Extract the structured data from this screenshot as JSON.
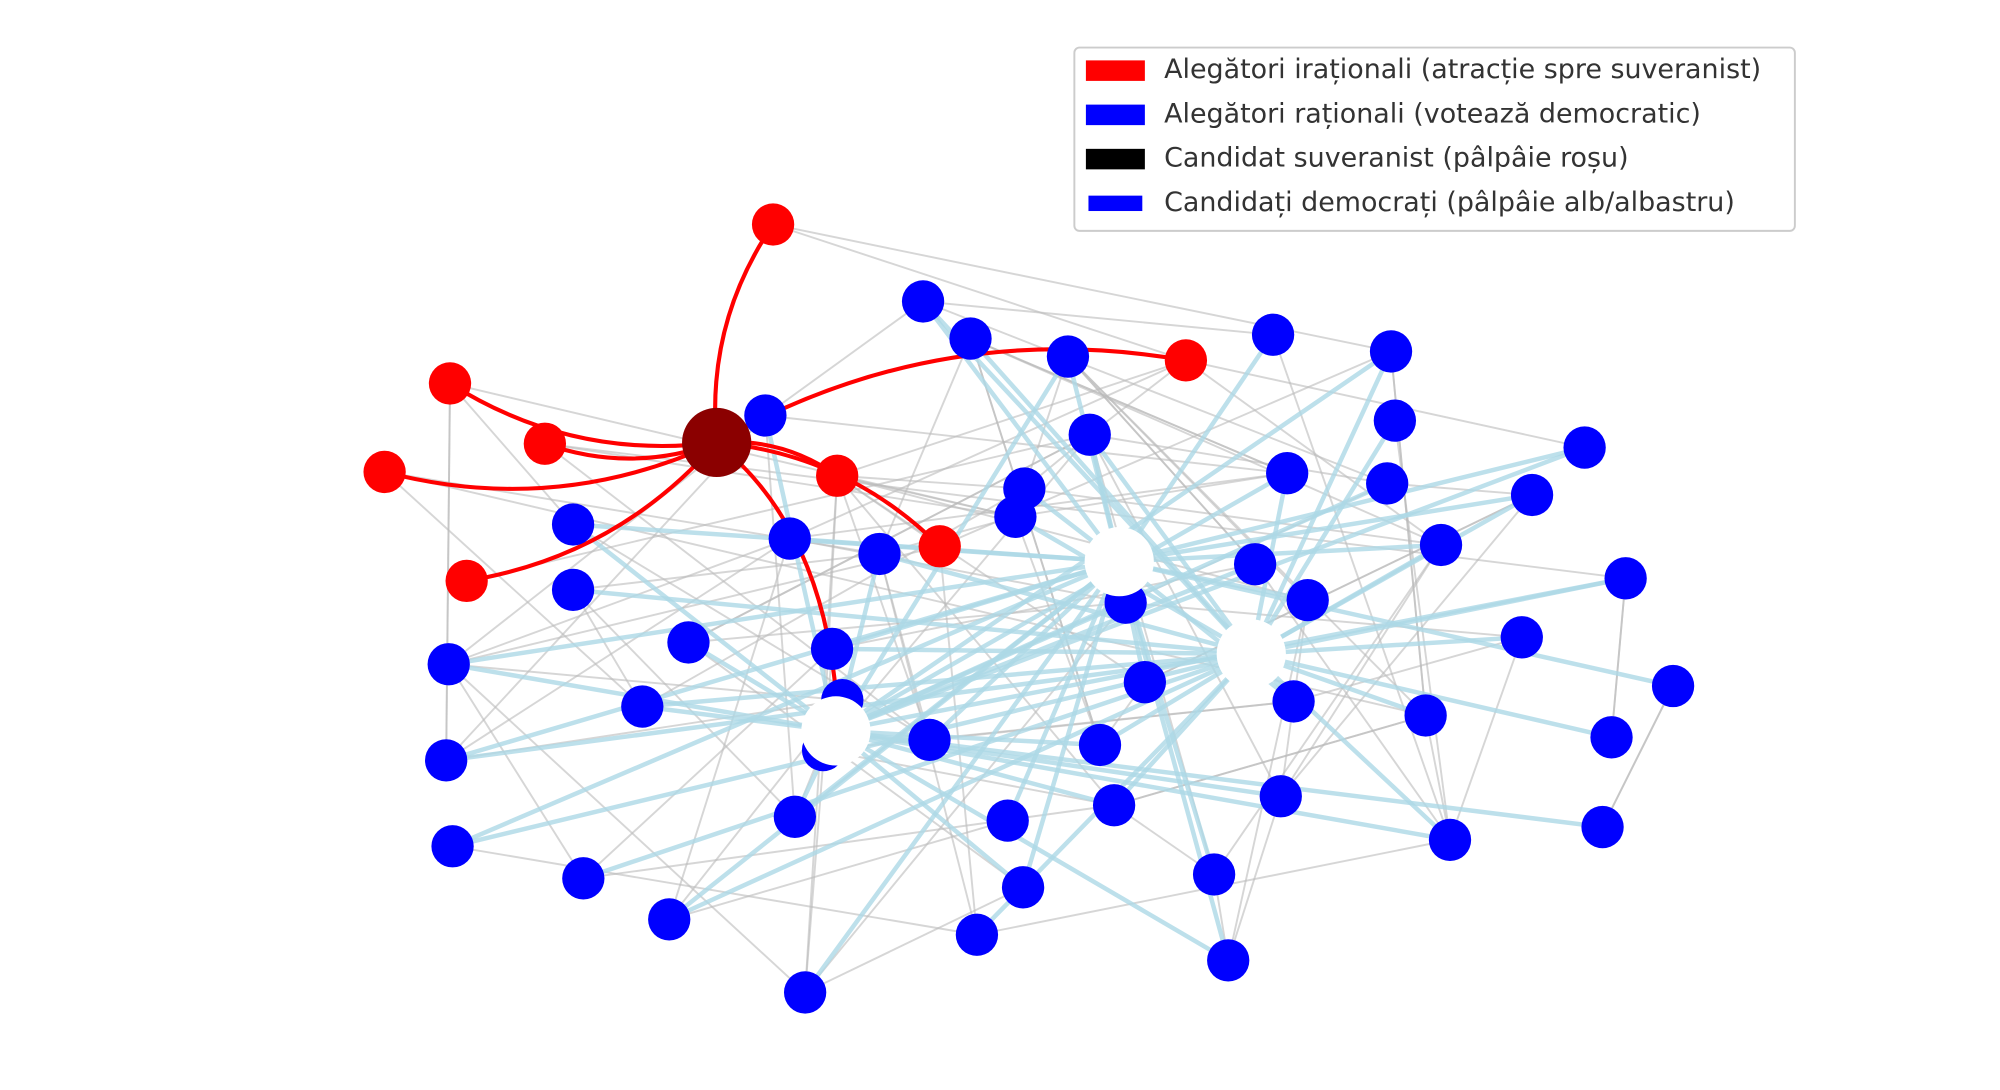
{
  "legend": {
    "items": [
      {
        "label": "Alegători iraționali (atracție spre suveranist)",
        "color": "#ff0000"
      },
      {
        "label": "Alegători raționali (votează democratic)",
        "color": "#0000ff"
      },
      {
        "label": "Candidat suveranist (pâlpâie roșu)",
        "color": "#000000"
      },
      {
        "label": "Candidați democrați (pâlpâie alb/albastru)",
        "color": "#0000ff"
      }
    ]
  }
}
